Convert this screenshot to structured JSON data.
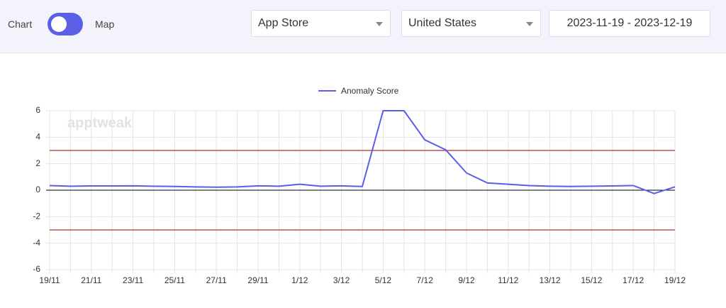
{
  "controls": {
    "toggle_left": "Chart",
    "toggle_right": "Map",
    "store": "App Store",
    "country": "United States",
    "date_range": "2023-11-19 - 2023-12-19"
  },
  "chart_data": {
    "type": "line",
    "watermark": "apptweak",
    "categories": [
      "19/11",
      null,
      "21/11",
      null,
      "23/11",
      null,
      "25/11",
      null,
      "27/11",
      null,
      "29/11",
      null,
      "1/12",
      null,
      "3/12",
      null,
      "5/12",
      null,
      "7/12",
      null,
      "9/12",
      null,
      "11/12",
      null,
      "13/12",
      null,
      "15/12",
      null,
      "17/12",
      null,
      "19/12"
    ],
    "series": [
      {
        "name": "Anomaly Score",
        "color": "#5b5ee6",
        "values": [
          0.35,
          0.3,
          0.32,
          0.32,
          0.33,
          0.3,
          0.28,
          0.25,
          0.23,
          0.25,
          0.33,
          0.3,
          0.45,
          0.3,
          0.33,
          0.28,
          6,
          6,
          3.8,
          3.05,
          1.3,
          0.55,
          0.45,
          0.35,
          0.3,
          0.28,
          0.3,
          0.32,
          0.35,
          -0.25,
          0.25
        ]
      }
    ],
    "threshold_lines": [
      3,
      -3
    ],
    "threshold_color": "#c0504d",
    "ylim": [
      -6,
      6
    ],
    "yticks": [
      -6,
      -4,
      -2,
      0,
      2,
      4,
      6
    ],
    "grid": true
  }
}
